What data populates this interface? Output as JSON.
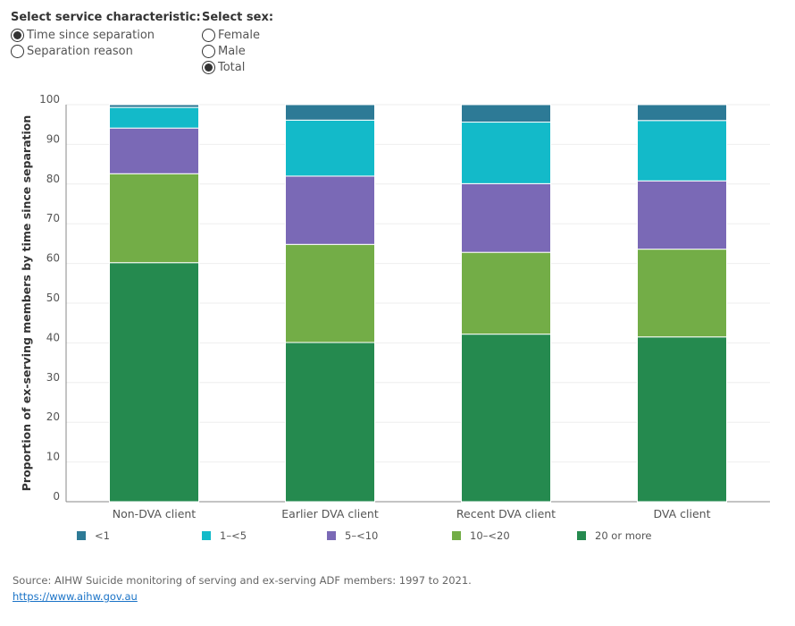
{
  "controls": {
    "characteristic": {
      "title": "Select service characteristic:",
      "options": [
        {
          "label": "Time since separation",
          "selected": true
        },
        {
          "label": "Separation reason",
          "selected": false
        }
      ]
    },
    "sex": {
      "title": "Select sex:",
      "options": [
        {
          "label": "Female",
          "selected": false
        },
        {
          "label": "Male",
          "selected": false
        },
        {
          "label": "Total",
          "selected": true
        }
      ]
    }
  },
  "chart_data": {
    "type": "bar",
    "stacked": true,
    "categories": [
      "Non-DVA client",
      "Earlier DVA client",
      "Recent DVA client",
      "DVA client"
    ],
    "series": [
      {
        "name": "20 or more",
        "color": "#258a4f",
        "values": [
          60.2,
          40.1,
          42.2,
          41.5
        ]
      },
      {
        "name": "10–<20",
        "color": "#73ad47",
        "values": [
          22.4,
          24.7,
          20.6,
          22.1
        ]
      },
      {
        "name": "5–<10",
        "color": "#7a69b6",
        "values": [
          11.5,
          17.2,
          17.3,
          17.2
        ]
      },
      {
        "name": "1–<5",
        "color": "#13bac9",
        "values": [
          5.2,
          14.1,
          15.5,
          15.2
        ]
      },
      {
        "name": "<1",
        "color": "#2d7a96",
        "values": [
          1.2,
          4.3,
          4.6,
          4.4
        ]
      }
    ],
    "legend_order": [
      "<1",
      "1–<5",
      "5–<10",
      "10–<20",
      "20 or more"
    ],
    "ylabel": "Proportion of ex-serving members by time since separation",
    "xlabel": "",
    "ylim": [
      0,
      100
    ],
    "yticks": [
      0,
      10,
      20,
      30,
      40,
      50,
      60,
      70,
      80,
      90,
      100
    ],
    "grid": true,
    "legend_position": "bottom"
  },
  "source": {
    "text": "Source: AIHW Suicide monitoring of serving and ex-serving ADF members: 1997 to 2021.",
    "link": "https://www.aihw.gov.au"
  }
}
